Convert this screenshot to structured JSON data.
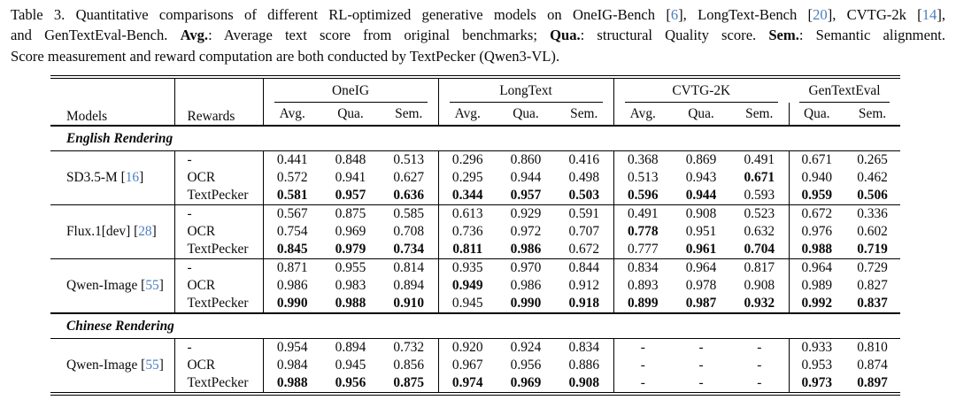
{
  "accent_colors": {
    "citation_blue": "#4a7fc1",
    "text_black": "#0b0b0b"
  },
  "caption": {
    "lines": [
      {
        "justify": true,
        "segments": [
          {
            "t": "Table 3. Quantitative comparisons of different RL-optimized generative models on OneIG-Bench ["
          },
          {
            "t": "6",
            "cite": true
          },
          {
            "t": "], LongText-Bench ["
          },
          {
            "t": "20",
            "cite": true
          },
          {
            "t": "], CVTG-2k ["
          },
          {
            "t": "14",
            "cite": true
          },
          {
            "t": "],"
          }
        ]
      },
      {
        "justify": true,
        "segments": [
          {
            "t": "and GenTextEval-Bench. "
          },
          {
            "t": "Avg.",
            "bold": true
          },
          {
            "t": ": Average text score from original benchmarks; "
          },
          {
            "t": "Qua.",
            "bold": true
          },
          {
            "t": ": structural Quality score. "
          },
          {
            "t": "Sem.",
            "bold": true
          },
          {
            "t": ": Semantic alignment."
          }
        ]
      },
      {
        "justify": false,
        "segments": [
          {
            "t": "Score measurement and reward computation are both conducted by TextPecker (Qwen3-VL)."
          }
        ]
      }
    ]
  },
  "table": {
    "header": {
      "models": "Models",
      "rewards": "Rewards",
      "groups": [
        {
          "label": "OneIG",
          "cols": [
            "Avg.",
            "Qua.",
            "Sem."
          ]
        },
        {
          "label": "LongText",
          "cols": [
            "Avg.",
            "Qua.",
            "Sem."
          ]
        },
        {
          "label": "CVTG-2K",
          "cols": [
            "Avg.",
            "Qua.",
            "Sem."
          ]
        },
        {
          "label": "GenTextEval",
          "cols": [
            "Qua.",
            "Sem."
          ]
        }
      ]
    },
    "sections": [
      {
        "title": "English Rendering",
        "groups": [
          {
            "model": "SD3.5-M",
            "cite": "16",
            "rows": [
              {
                "reward": "-",
                "values": [
                  "0.441",
                  "0.848",
                  "0.513",
                  "0.296",
                  "0.860",
                  "0.416",
                  "0.368",
                  "0.869",
                  "0.491",
                  "0.671",
                  "0.265"
                ],
                "bold": []
              },
              {
                "reward": "OCR",
                "values": [
                  "0.572",
                  "0.941",
                  "0.627",
                  "0.295",
                  "0.944",
                  "0.498",
                  "0.513",
                  "0.943",
                  "0.671",
                  "0.940",
                  "0.462"
                ],
                "bold": [
                  8
                ]
              },
              {
                "reward": "TextPecker",
                "values": [
                  "0.581",
                  "0.957",
                  "0.636",
                  "0.344",
                  "0.957",
                  "0.503",
                  "0.596",
                  "0.944",
                  "0.593",
                  "0.959",
                  "0.506"
                ],
                "bold": [
                  0,
                  1,
                  2,
                  3,
                  4,
                  5,
                  6,
                  7,
                  9,
                  10
                ]
              }
            ]
          },
          {
            "model": "Flux.1[dev]",
            "cite": "28",
            "rows": [
              {
                "reward": "-",
                "values": [
                  "0.567",
                  "0.875",
                  "0.585",
                  "0.613",
                  "0.929",
                  "0.591",
                  "0.491",
                  "0.908",
                  "0.523",
                  "0.672",
                  "0.336"
                ],
                "bold": []
              },
              {
                "reward": "OCR",
                "values": [
                  "0.754",
                  "0.969",
                  "0.708",
                  "0.736",
                  "0.972",
                  "0.707",
                  "0.778",
                  "0.951",
                  "0.632",
                  "0.976",
                  "0.602"
                ],
                "bold": [
                  6
                ]
              },
              {
                "reward": "TextPecker",
                "values": [
                  "0.845",
                  "0.979",
                  "0.734",
                  "0.811",
                  "0.986",
                  "0.672",
                  "0.777",
                  "0.961",
                  "0.704",
                  "0.988",
                  "0.719"
                ],
                "bold": [
                  0,
                  1,
                  2,
                  3,
                  4,
                  7,
                  8,
                  9,
                  10
                ]
              }
            ]
          },
          {
            "model": "Qwen-Image",
            "cite": "55",
            "rows": [
              {
                "reward": "-",
                "values": [
                  "0.871",
                  "0.955",
                  "0.814",
                  "0.935",
                  "0.970",
                  "0.844",
                  "0.834",
                  "0.964",
                  "0.817",
                  "0.964",
                  "0.729"
                ],
                "bold": []
              },
              {
                "reward": "OCR",
                "values": [
                  "0.986",
                  "0.983",
                  "0.894",
                  "0.949",
                  "0.986",
                  "0.912",
                  "0.893",
                  "0.978",
                  "0.908",
                  "0.989",
                  "0.827"
                ],
                "bold": [
                  3
                ]
              },
              {
                "reward": "TextPecker",
                "values": [
                  "0.990",
                  "0.988",
                  "0.910",
                  "0.945",
                  "0.990",
                  "0.918",
                  "0.899",
                  "0.987",
                  "0.932",
                  "0.992",
                  "0.837"
                ],
                "bold": [
                  0,
                  1,
                  2,
                  4,
                  5,
                  6,
                  7,
                  8,
                  9,
                  10
                ]
              }
            ]
          }
        ]
      },
      {
        "title": "Chinese Rendering",
        "groups": [
          {
            "model": "Qwen-Image",
            "cite": "55",
            "rows": [
              {
                "reward": "-",
                "values": [
                  "0.954",
                  "0.894",
                  "0.732",
                  "0.920",
                  "0.924",
                  "0.834",
                  "-",
                  "-",
                  "-",
                  "0.933",
                  "0.810"
                ],
                "bold": []
              },
              {
                "reward": "OCR",
                "values": [
                  "0.984",
                  "0.945",
                  "0.856",
                  "0.967",
                  "0.956",
                  "0.886",
                  "-",
                  "-",
                  "-",
                  "0.953",
                  "0.874"
                ],
                "bold": []
              },
              {
                "reward": "TextPecker",
                "values": [
                  "0.988",
                  "0.956",
                  "0.875",
                  "0.974",
                  "0.969",
                  "0.908",
                  "-",
                  "-",
                  "-",
                  "0.973",
                  "0.897"
                ],
                "bold": [
                  0,
                  1,
                  2,
                  3,
                  4,
                  5,
                  9,
                  10
                ]
              }
            ]
          }
        ]
      }
    ]
  }
}
